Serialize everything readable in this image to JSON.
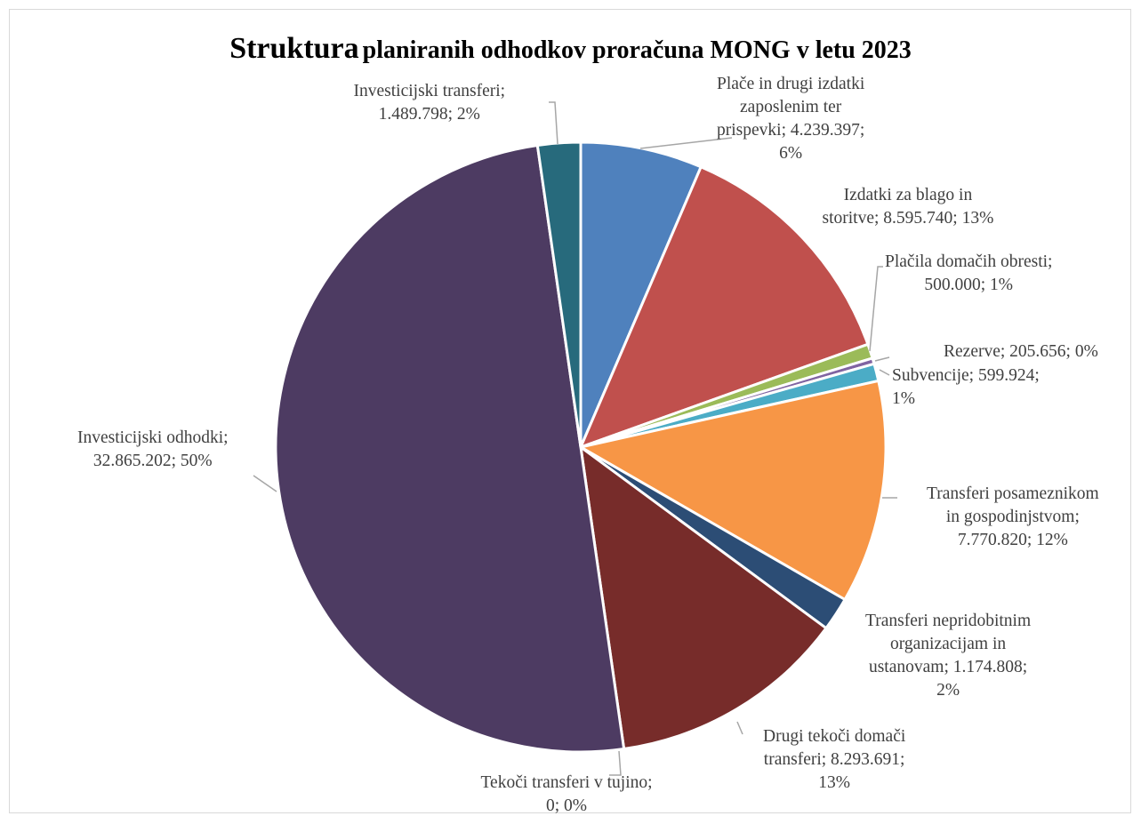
{
  "chart_data": {
    "type": "pie",
    "title_bold": "Struktura",
    "title_rest": "planiranih odhodkov proračuna MONG v letu 2023",
    "slices": [
      {
        "name": "Plače in drugi izdatki zaposlenim ter prispevki",
        "value": 4239397,
        "percent": "6%",
        "value_label": "4.239.397",
        "color": "#4F81BD",
        "label_lines": [
          "Plače in drugi izdatki",
          "zaposlenim ter",
          "prispevki; 4.239.397;",
          "6%"
        ]
      },
      {
        "name": "Izdatki za blago in storitve",
        "value": 8595740,
        "percent": "13%",
        "value_label": "8.595.740",
        "color": "#C0504D",
        "label_lines": [
          "Izdatki za blago in",
          "storitve; 8.595.740; 13%"
        ]
      },
      {
        "name": "Plačila domačih obresti",
        "value": 500000,
        "percent": "1%",
        "value_label": "500.000",
        "color": "#9BBB59",
        "label_lines": [
          "Plačila domačih obresti;",
          "500.000; 1%"
        ]
      },
      {
        "name": "Rezerve",
        "value": 205656,
        "percent": "0%",
        "value_label": "205.656",
        "color": "#8064A2",
        "label_lines": [
          "Rezerve; 205.656; 0%"
        ]
      },
      {
        "name": "Subvencije",
        "value": 599924,
        "percent": "1%",
        "value_label": "599.924",
        "color": "#4BACC6",
        "label_lines": [
          "Subvencije; 599.924;",
          "1%"
        ]
      },
      {
        "name": "Transferi posameznikom in gospodinjstvom",
        "value": 7770820,
        "percent": "12%",
        "value_label": "7.770.820",
        "color": "#F79646",
        "label_lines": [
          "Transferi posameznikom",
          "in gospodinjstvom;",
          "7.770.820; 12%"
        ]
      },
      {
        "name": "Transferi nepridobitnim organizacijam in ustanovam",
        "value": 1174808,
        "percent": "2%",
        "value_label": "1.174.808",
        "color": "#2C4D75",
        "label_lines": [
          "Transferi nepridobitnim",
          "organizacijam in",
          "ustanovam; 1.174.808;",
          "2%"
        ]
      },
      {
        "name": "Drugi tekoči domači transferi",
        "value": 8293691,
        "percent": "13%",
        "value_label": "8.293.691",
        "color": "#772C2A",
        "label_lines": [
          "Drugi tekoči domači",
          "transferi; 8.293.691;",
          "13%"
        ]
      },
      {
        "name": "Tekoči transferi v tujino",
        "value": 0,
        "percent": "0%",
        "value_label": "0",
        "color": "#5F7530",
        "label_lines": [
          "Tekoči transferi v tujino;",
          "0; 0%"
        ]
      },
      {
        "name": "Investicijski odhodki",
        "value": 32865202,
        "percent": "50%",
        "value_label": "32.865.202",
        "color": "#4D3B62",
        "label_lines": [
          "Investicijski odhodki;",
          "32.865.202; 50%"
        ]
      },
      {
        "name": "Investicijski transferi",
        "value": 1489798,
        "percent": "2%",
        "value_label": "1.489.798",
        "color": "#276A7C",
        "label_lines": [
          "Investicijski transferi;",
          "1.489.798; 2%"
        ]
      }
    ],
    "legend": "none"
  }
}
